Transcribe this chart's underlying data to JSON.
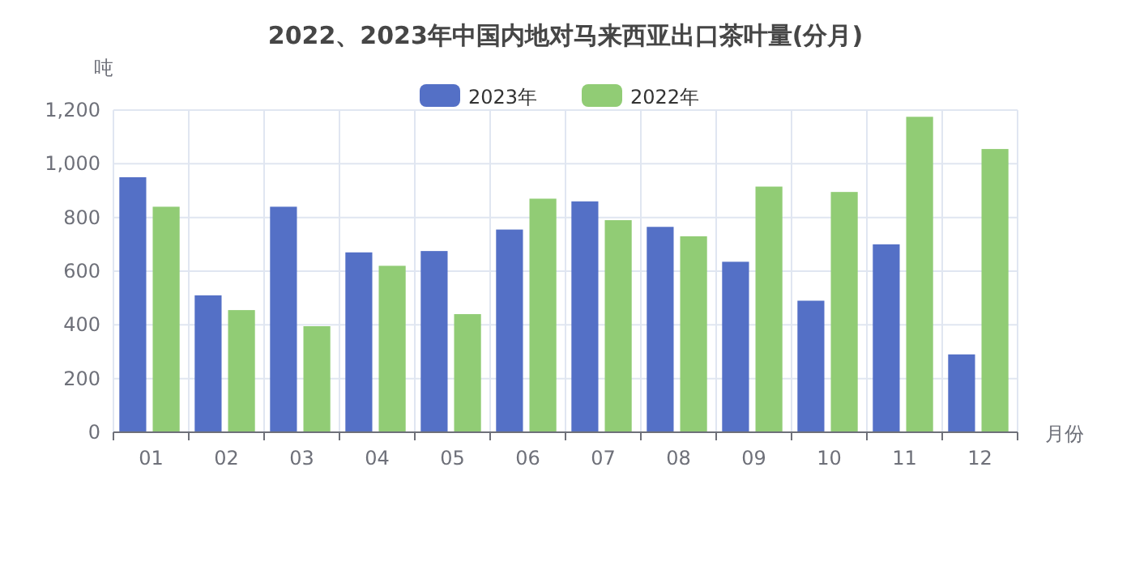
{
  "chart_data": {
    "type": "bar",
    "title": "2022、2023年中国内地对马来西亚出口茶叶量(分月)",
    "xlabel": "月份",
    "ylabel": "吨",
    "categories": [
      "01",
      "02",
      "03",
      "04",
      "05",
      "06",
      "07",
      "08",
      "09",
      "10",
      "11",
      "12"
    ],
    "series": [
      {
        "name": "2023年",
        "color": "#5470c6",
        "values": [
          950,
          510,
          840,
          670,
          675,
          755,
          860,
          765,
          635,
          490,
          700,
          290
        ]
      },
      {
        "name": "2022年",
        "color": "#91cc75",
        "values": [
          840,
          455,
          395,
          620,
          440,
          870,
          790,
          730,
          915,
          895,
          1175,
          1055
        ]
      }
    ],
    "ylim": [
      0,
      1200
    ],
    "yticks": [
      0,
      {
        "value": 200,
        "label": "200"
      },
      400,
      600,
      800,
      {
        "value": 1000,
        "label": "1,000"
      },
      {
        "value": 1200,
        "label": "1,200"
      }
    ],
    "grid": true,
    "legend": "top"
  }
}
